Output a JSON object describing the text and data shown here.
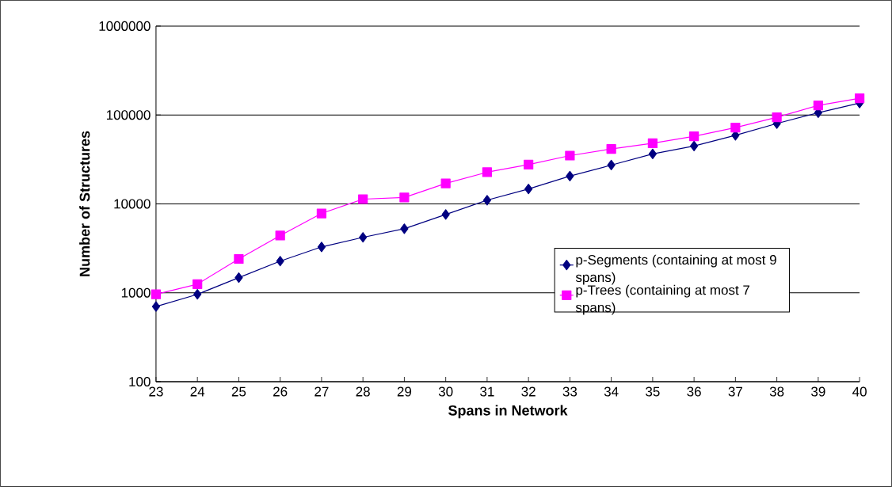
{
  "chart_data": {
    "type": "line",
    "xlabel": "Spans in Network",
    "ylabel": "Number of Structures",
    "x": [
      23,
      24,
      25,
      26,
      27,
      28,
      29,
      30,
      31,
      32,
      33,
      34,
      35,
      36,
      37,
      38,
      39,
      40
    ],
    "series": [
      {
        "name": "p-Segments (containing at most 9 spans)",
        "color": "#000080",
        "marker": "diamond",
        "values": [
          700,
          960,
          1480,
          2270,
          3280,
          4200,
          5250,
          7600,
          11000,
          14700,
          20500,
          27300,
          36500,
          44700,
          59000,
          80000,
          106000,
          136000
        ]
      },
      {
        "name": "p-Trees (containing at most 7 spans)",
        "color": "#ff00ff",
        "marker": "square",
        "values": [
          960,
          1250,
          2400,
          4400,
          7800,
          11300,
          11800,
          17000,
          22700,
          27600,
          34900,
          41500,
          48000,
          57600,
          72000,
          94000,
          128000,
          154000
        ]
      }
    ],
    "xlim": [
      23,
      40
    ],
    "xticks": [
      23,
      24,
      25,
      26,
      27,
      28,
      29,
      30,
      31,
      32,
      33,
      34,
      35,
      36,
      37,
      38,
      39,
      40
    ],
    "ylim": [
      100,
      1000000
    ],
    "yticks": [
      100,
      1000,
      10000,
      100000,
      1000000
    ],
    "log": true,
    "grid": "y",
    "legend": "bottom right",
    "line_style": "solid"
  }
}
